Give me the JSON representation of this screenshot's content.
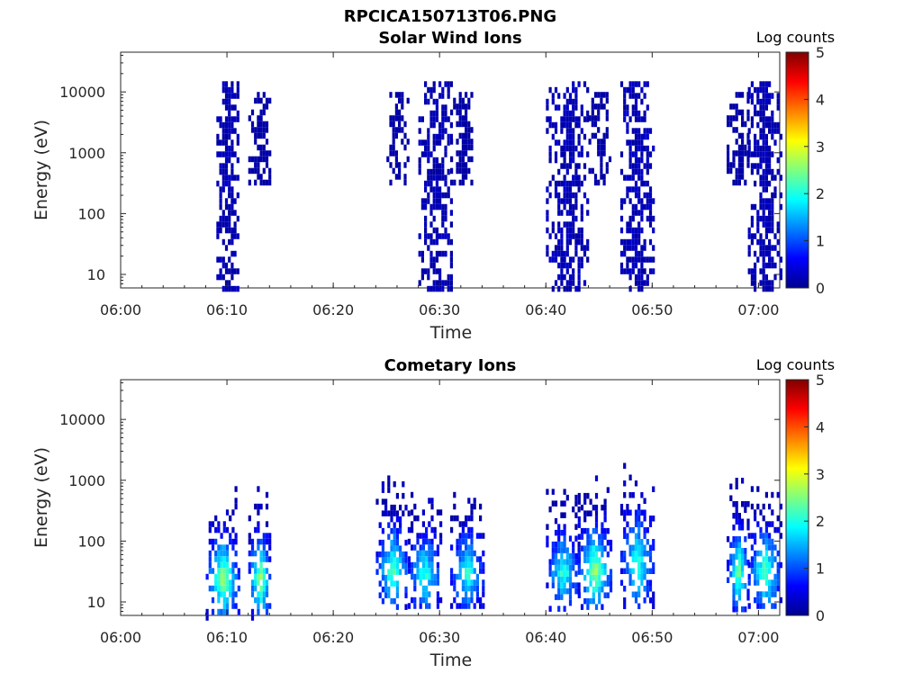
{
  "figure_title": "RPCICA150713T06.PNG",
  "colormap": "jet",
  "chart_data": [
    {
      "type": "heatmap",
      "title": "Solar Wind Ions",
      "xlabel": "Time",
      "ylabel": "Energy (eV)",
      "y_scale": "log",
      "xlim": [
        "06:00",
        "07:02"
      ],
      "ylim": [
        6,
        45000
      ],
      "x_ticks": [
        "06:00",
        "06:10",
        "06:20",
        "06:30",
        "06:40",
        "06:50",
        "07:00"
      ],
      "y_ticks": [
        10,
        100,
        1000,
        10000
      ],
      "y_tick_labels": [
        "10",
        "100",
        "1000",
        "10000"
      ],
      "colorbar": {
        "label": "Log counts",
        "range": [
          0,
          5
        ],
        "ticks": [
          "0",
          "1",
          "2",
          "3",
          "4",
          "5"
        ]
      },
      "bursts": [
        {
          "start": "06:09",
          "end": "06:11",
          "e_min": 6,
          "e_max": 15000,
          "log_counts_peak": 0.5
        },
        {
          "start": "06:12",
          "end": "06:14",
          "e_min": 300,
          "e_max": 10000,
          "log_counts_peak": 0.2
        },
        {
          "start": "06:25",
          "end": "06:27",
          "e_min": 300,
          "e_max": 10000,
          "log_counts_peak": 0.2
        },
        {
          "start": "06:28",
          "end": "06:31",
          "e_min": 6,
          "e_max": 15000,
          "log_counts_peak": 0.5
        },
        {
          "start": "06:31",
          "end": "06:33",
          "e_min": 300,
          "e_max": 10000,
          "log_counts_peak": 0.2
        },
        {
          "start": "06:40",
          "end": "06:44",
          "e_min": 6,
          "e_max": 15000,
          "log_counts_peak": 0.6
        },
        {
          "start": "06:44",
          "end": "06:46",
          "e_min": 300,
          "e_max": 10000,
          "log_counts_peak": 0.2
        },
        {
          "start": "06:47",
          "end": "06:50",
          "e_min": 6,
          "e_max": 15000,
          "log_counts_peak": 0.6
        },
        {
          "start": "06:57",
          "end": "06:59",
          "e_min": 300,
          "e_max": 10000,
          "log_counts_peak": 0.2
        },
        {
          "start": "06:59",
          "end": "07:02",
          "e_min": 6,
          "e_max": 15000,
          "log_counts_peak": 0.5
        }
      ]
    },
    {
      "type": "heatmap",
      "title": "Cometary Ions",
      "xlabel": "Time",
      "ylabel": "Energy (eV)",
      "y_scale": "log",
      "xlim": [
        "06:00",
        "07:02"
      ],
      "ylim": [
        6,
        45000
      ],
      "x_ticks": [
        "06:00",
        "06:10",
        "06:20",
        "06:30",
        "06:40",
        "06:50",
        "07:00"
      ],
      "y_ticks": [
        10,
        100,
        1000,
        10000
      ],
      "y_tick_labels": [
        "10",
        "100",
        "1000",
        "10000"
      ],
      "colorbar": {
        "label": "Log counts",
        "range": [
          0,
          5
        ],
        "ticks": [
          "0",
          "1",
          "2",
          "3",
          "4",
          "5"
        ]
      },
      "bursts": [
        {
          "start": "06:08",
          "end": "06:11",
          "e_min": 6,
          "e_max": 800,
          "log_counts_peak": 2.6
        },
        {
          "start": "06:12",
          "end": "06:14",
          "e_min": 6,
          "e_max": 800,
          "log_counts_peak": 2.6
        },
        {
          "start": "06:24",
          "end": "06:27",
          "e_min": 8,
          "e_max": 1200,
          "log_counts_peak": 2.2
        },
        {
          "start": "06:27",
          "end": "06:30",
          "e_min": 8,
          "e_max": 800,
          "log_counts_peak": 2.0
        },
        {
          "start": "06:31",
          "end": "06:34",
          "e_min": 8,
          "e_max": 800,
          "log_counts_peak": 2.0
        },
        {
          "start": "06:40",
          "end": "06:43",
          "e_min": 8,
          "e_max": 900,
          "log_counts_peak": 2.0
        },
        {
          "start": "06:43",
          "end": "06:46",
          "e_min": 8,
          "e_max": 1200,
          "log_counts_peak": 2.6
        },
        {
          "start": "06:47",
          "end": "06:50",
          "e_min": 8,
          "e_max": 3000,
          "log_counts_peak": 2.0
        },
        {
          "start": "06:57",
          "end": "06:59",
          "e_min": 8,
          "e_max": 1100,
          "log_counts_peak": 2.3
        },
        {
          "start": "06:59",
          "end": "07:02",
          "e_min": 8,
          "e_max": 1000,
          "log_counts_peak": 2.3
        }
      ]
    }
  ]
}
